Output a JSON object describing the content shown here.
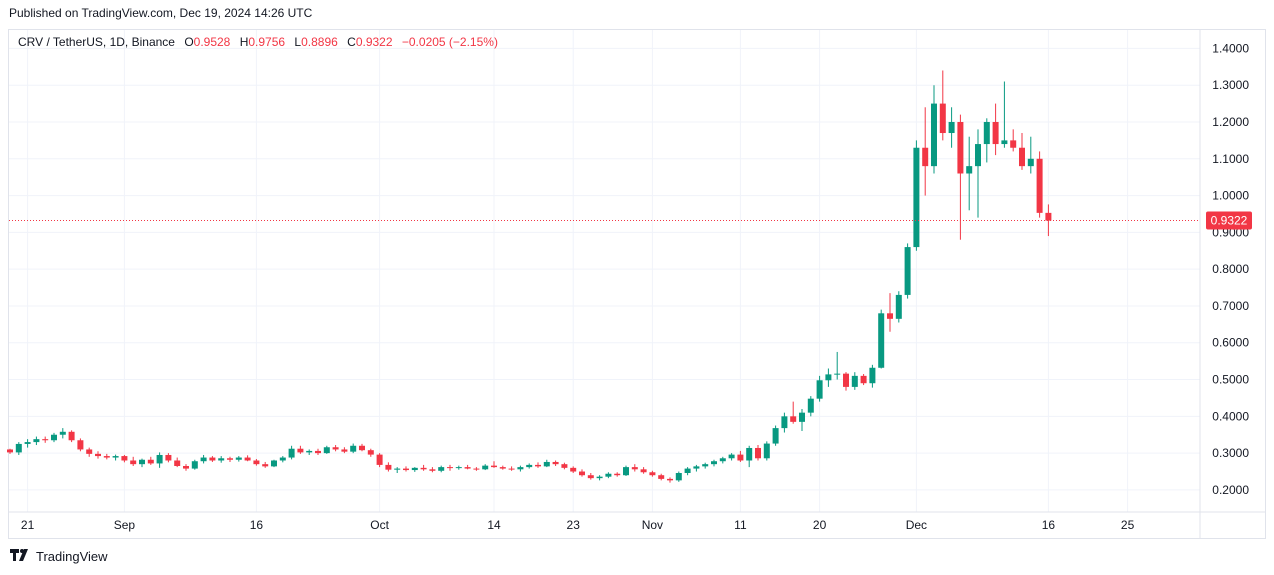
{
  "published": "Published on TradingView.com, Dec 19, 2024 14:26 UTC",
  "legend": {
    "symbol": "CRV / TetherUS, 1D, Binance",
    "o_label": "O",
    "o_value": "0.9528",
    "h_label": "H",
    "h_value": "0.9756",
    "l_label": "L",
    "l_value": "0.8896",
    "c_label": "C",
    "c_value": "0.9322",
    "change": "−0.0205 (−2.15%)"
  },
  "footer": {
    "brand": "TradingView",
    "logo": "tradingview-logo-icon"
  },
  "colors": {
    "up": "#089981",
    "down": "#f23645",
    "grid": "#f0f3fa",
    "text": "#131722"
  },
  "chart_data": {
    "type": "candlestick",
    "ylim": [
      0.14,
      1.45
    ],
    "y_ticks": [
      "1.4000",
      "1.3000",
      "1.2000",
      "1.1000",
      "1.0000",
      "0.9000",
      "0.8000",
      "0.7000",
      "0.6000",
      "0.5000",
      "0.4000",
      "0.3000",
      "0.2000"
    ],
    "x_ticks": [
      {
        "label": "21",
        "index": 2
      },
      {
        "label": "Sep",
        "index": 13
      },
      {
        "label": "16",
        "index": 28
      },
      {
        "label": "Oct",
        "index": 42
      },
      {
        "label": "14",
        "index": 55
      },
      {
        "label": "23",
        "index": 64
      },
      {
        "label": "Nov",
        "index": 73
      },
      {
        "label": "11",
        "index": 83
      },
      {
        "label": "20",
        "index": 92
      },
      {
        "label": "Dec",
        "index": 103
      },
      {
        "label": "16",
        "index": 118
      },
      {
        "label": "25",
        "index": 127
      }
    ],
    "last_price": 0.9322,
    "last_price_label": "0.9322",
    "candles": [
      [
        0.31,
        0.312,
        0.298,
        0.302
      ],
      [
        0.302,
        0.33,
        0.295,
        0.325
      ],
      [
        0.325,
        0.338,
        0.315,
        0.33
      ],
      [
        0.33,
        0.345,
        0.322,
        0.338
      ],
      [
        0.338,
        0.345,
        0.328,
        0.335
      ],
      [
        0.335,
        0.355,
        0.33,
        0.35
      ],
      [
        0.35,
        0.368,
        0.34,
        0.358
      ],
      [
        0.358,
        0.362,
        0.33,
        0.335
      ],
      [
        0.335,
        0.34,
        0.305,
        0.31
      ],
      [
        0.31,
        0.315,
        0.29,
        0.298
      ],
      [
        0.298,
        0.305,
        0.285,
        0.292
      ],
      [
        0.292,
        0.298,
        0.283,
        0.288
      ],
      [
        0.288,
        0.296,
        0.28,
        0.292
      ],
      [
        0.292,
        0.295,
        0.275,
        0.28
      ],
      [
        0.28,
        0.29,
        0.265,
        0.27
      ],
      [
        0.27,
        0.285,
        0.262,
        0.282
      ],
      [
        0.282,
        0.29,
        0.268,
        0.272
      ],
      [
        0.272,
        0.302,
        0.26,
        0.295
      ],
      [
        0.295,
        0.3,
        0.275,
        0.28
      ],
      [
        0.28,
        0.288,
        0.262,
        0.265
      ],
      [
        0.265,
        0.27,
        0.252,
        0.258
      ],
      [
        0.258,
        0.282,
        0.255,
        0.278
      ],
      [
        0.278,
        0.295,
        0.272,
        0.288
      ],
      [
        0.288,
        0.292,
        0.276,
        0.28
      ],
      [
        0.28,
        0.292,
        0.274,
        0.286
      ],
      [
        0.286,
        0.29,
        0.276,
        0.282
      ],
      [
        0.282,
        0.292,
        0.277,
        0.288
      ],
      [
        0.288,
        0.294,
        0.278,
        0.28
      ],
      [
        0.28,
        0.284,
        0.266,
        0.27
      ],
      [
        0.27,
        0.276,
        0.26,
        0.264
      ],
      [
        0.264,
        0.282,
        0.262,
        0.28
      ],
      [
        0.28,
        0.292,
        0.275,
        0.288
      ],
      [
        0.288,
        0.32,
        0.283,
        0.312
      ],
      [
        0.312,
        0.32,
        0.298,
        0.302
      ],
      [
        0.302,
        0.31,
        0.295,
        0.306
      ],
      [
        0.306,
        0.312,
        0.295,
        0.3
      ],
      [
        0.3,
        0.32,
        0.298,
        0.316
      ],
      [
        0.316,
        0.322,
        0.305,
        0.31
      ],
      [
        0.31,
        0.316,
        0.3,
        0.304
      ],
      [
        0.304,
        0.326,
        0.3,
        0.32
      ],
      [
        0.32,
        0.325,
        0.305,
        0.308
      ],
      [
        0.308,
        0.312,
        0.29,
        0.296
      ],
      [
        0.296,
        0.3,
        0.262,
        0.268
      ],
      [
        0.268,
        0.275,
        0.25,
        0.255
      ],
      [
        0.255,
        0.262,
        0.246,
        0.258
      ],
      [
        0.258,
        0.264,
        0.25,
        0.254
      ],
      [
        0.254,
        0.262,
        0.249,
        0.26
      ],
      [
        0.26,
        0.268,
        0.252,
        0.256
      ],
      [
        0.256,
        0.262,
        0.248,
        0.252
      ],
      [
        0.252,
        0.266,
        0.248,
        0.262
      ],
      [
        0.262,
        0.268,
        0.252,
        0.26
      ],
      [
        0.26,
        0.266,
        0.255,
        0.262
      ],
      [
        0.262,
        0.268,
        0.256,
        0.258
      ],
      [
        0.258,
        0.262,
        0.252,
        0.256
      ],
      [
        0.256,
        0.27,
        0.254,
        0.266
      ],
      [
        0.266,
        0.278,
        0.26,
        0.262
      ],
      [
        0.262,
        0.266,
        0.255,
        0.258
      ],
      [
        0.258,
        0.264,
        0.252,
        0.256
      ],
      [
        0.256,
        0.266,
        0.25,
        0.262
      ],
      [
        0.262,
        0.272,
        0.258,
        0.268
      ],
      [
        0.268,
        0.275,
        0.26,
        0.264
      ],
      [
        0.264,
        0.282,
        0.262,
        0.276
      ],
      [
        0.276,
        0.28,
        0.265,
        0.27
      ],
      [
        0.27,
        0.274,
        0.256,
        0.26
      ],
      [
        0.26,
        0.264,
        0.246,
        0.25
      ],
      [
        0.25,
        0.256,
        0.236,
        0.24
      ],
      [
        0.24,
        0.246,
        0.228,
        0.232
      ],
      [
        0.232,
        0.24,
        0.226,
        0.236
      ],
      [
        0.236,
        0.248,
        0.232,
        0.244
      ],
      [
        0.244,
        0.248,
        0.236,
        0.24
      ],
      [
        0.24,
        0.266,
        0.238,
        0.262
      ],
      [
        0.262,
        0.27,
        0.25,
        0.256
      ],
      [
        0.256,
        0.262,
        0.244,
        0.248
      ],
      [
        0.248,
        0.252,
        0.236,
        0.24
      ],
      [
        0.24,
        0.244,
        0.226,
        0.23
      ],
      [
        0.23,
        0.234,
        0.22,
        0.226
      ],
      [
        0.226,
        0.25,
        0.222,
        0.246
      ],
      [
        0.246,
        0.262,
        0.24,
        0.258
      ],
      [
        0.258,
        0.268,
        0.25,
        0.264
      ],
      [
        0.264,
        0.274,
        0.258,
        0.27
      ],
      [
        0.27,
        0.282,
        0.264,
        0.278
      ],
      [
        0.278,
        0.29,
        0.272,
        0.286
      ],
      [
        0.286,
        0.3,
        0.28,
        0.296
      ],
      [
        0.296,
        0.306,
        0.276,
        0.28
      ],
      [
        0.28,
        0.32,
        0.262,
        0.314
      ],
      [
        0.314,
        0.322,
        0.28,
        0.286
      ],
      [
        0.286,
        0.332,
        0.28,
        0.326
      ],
      [
        0.326,
        0.375,
        0.32,
        0.368
      ],
      [
        0.368,
        0.41,
        0.356,
        0.4
      ],
      [
        0.4,
        0.44,
        0.38,
        0.385
      ],
      [
        0.385,
        0.42,
        0.36,
        0.41
      ],
      [
        0.41,
        0.455,
        0.4,
        0.448
      ],
      [
        0.448,
        0.51,
        0.44,
        0.498
      ],
      [
        0.498,
        0.53,
        0.48,
        0.514
      ],
      [
        0.514,
        0.575,
        0.5,
        0.516
      ],
      [
        0.516,
        0.52,
        0.47,
        0.48
      ],
      [
        0.48,
        0.52,
        0.472,
        0.51
      ],
      [
        0.51,
        0.515,
        0.485,
        0.49
      ],
      [
        0.49,
        0.54,
        0.478,
        0.532
      ],
      [
        0.532,
        0.69,
        0.53,
        0.68
      ],
      [
        0.68,
        0.735,
        0.63,
        0.665
      ],
      [
        0.665,
        0.74,
        0.655,
        0.73
      ],
      [
        0.73,
        0.87,
        0.72,
        0.86
      ],
      [
        0.86,
        1.15,
        0.85,
        1.13
      ],
      [
        1.13,
        1.24,
        1.0,
        1.08
      ],
      [
        1.08,
        1.3,
        1.06,
        1.25
      ],
      [
        1.25,
        1.34,
        1.15,
        1.17
      ],
      [
        1.17,
        1.24,
        1.13,
        1.2
      ],
      [
        1.2,
        1.22,
        0.88,
        1.06
      ],
      [
        1.06,
        1.16,
        0.96,
        1.08
      ],
      [
        1.08,
        1.18,
        0.94,
        1.14
      ],
      [
        1.14,
        1.21,
        1.09,
        1.2
      ],
      [
        1.2,
        1.25,
        1.11,
        1.14
      ],
      [
        1.14,
        1.31,
        1.13,
        1.15
      ],
      [
        1.15,
        1.18,
        1.12,
        1.13
      ],
      [
        1.13,
        1.17,
        1.07,
        1.08
      ],
      [
        1.08,
        1.16,
        1.06,
        1.1
      ],
      [
        1.1,
        1.12,
        0.94,
        0.953
      ],
      [
        0.953,
        0.976,
        0.89,
        0.932
      ]
    ]
  }
}
